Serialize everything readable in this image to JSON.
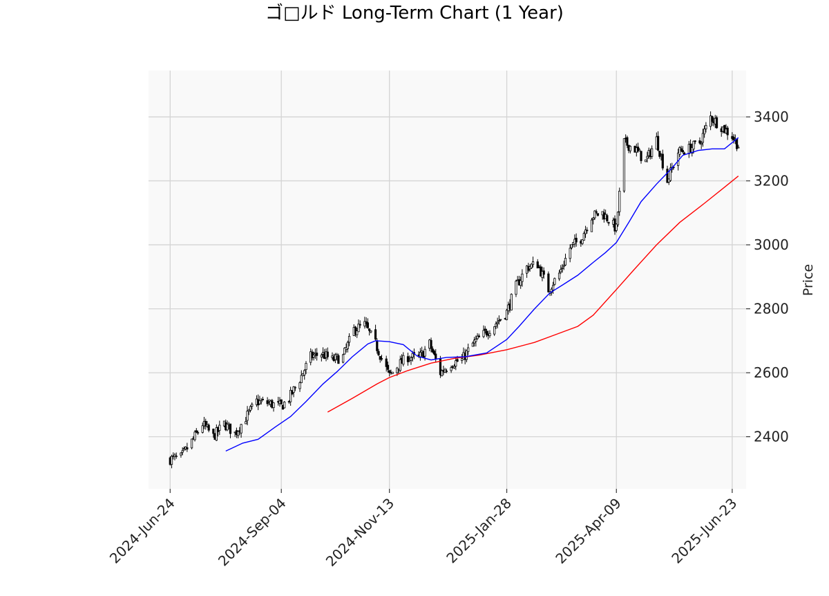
{
  "chart_data": {
    "type": "candlestick",
    "title": "ゴ□ルド Long-Term Chart (1 Year)",
    "ylabel": "Price",
    "ylim": [
      2237,
      3545
    ],
    "y_ticks": [
      2400,
      2600,
      2800,
      3000,
      3200,
      3400
    ],
    "x_range": [
      "2024-06-10",
      "2025-07-02"
    ],
    "x_ticks": [
      "2024-06-24",
      "2024-09-04",
      "2024-11-13",
      "2025-01-28",
      "2025-04-09",
      "2025-06-23"
    ],
    "x_tick_labels": [
      "2024-Jun-24",
      "2024-Sep-04",
      "2024-Nov-13",
      "2025-Jan-28",
      "2025-Apr-09",
      "2025-Jun-23"
    ],
    "grid": true,
    "colors": {
      "candle": "#000000",
      "ma_short": "#0000ff",
      "ma_long": "#ff0000",
      "plot_bg": "#f9f9f9",
      "grid": "#d4d4d4"
    },
    "closes": [
      [
        "2024-06-24",
        2330
      ],
      [
        "2024-07-01",
        2335
      ],
      [
        "2024-07-08",
        2385
      ],
      [
        "2024-07-15",
        2440
      ],
      [
        "2024-07-22",
        2400
      ],
      [
        "2024-07-29",
        2440
      ],
      [
        "2024-08-05",
        2410
      ],
      [
        "2024-08-12",
        2460
      ],
      [
        "2024-08-19",
        2510
      ],
      [
        "2024-08-26",
        2505
      ],
      [
        "2024-09-04",
        2495
      ],
      [
        "2024-09-09",
        2520
      ],
      [
        "2024-09-16",
        2580
      ],
      [
        "2024-09-23",
        2650
      ],
      [
        "2024-09-30",
        2660
      ],
      [
        "2024-10-07",
        2640
      ],
      [
        "2024-10-14",
        2650
      ],
      [
        "2024-10-21",
        2735
      ],
      [
        "2024-10-28",
        2750
      ],
      [
        "2024-11-04",
        2690
      ],
      [
        "2024-11-13",
        2590
      ],
      [
        "2024-11-18",
        2620
      ],
      [
        "2024-11-25",
        2650
      ],
      [
        "2024-12-02",
        2645
      ],
      [
        "2024-12-09",
        2690
      ],
      [
        "2024-12-16",
        2600
      ],
      [
        "2024-12-23",
        2630
      ],
      [
        "2024-12-30",
        2640
      ],
      [
        "2025-01-06",
        2690
      ],
      [
        "2025-01-13",
        2720
      ],
      [
        "2025-01-20",
        2750
      ],
      [
        "2025-01-28",
        2790
      ],
      [
        "2025-02-03",
        2870
      ],
      [
        "2025-02-10",
        2930
      ],
      [
        "2025-02-17",
        2940
      ],
      [
        "2025-02-24",
        2860
      ],
      [
        "2025-03-03",
        2910
      ],
      [
        "2025-03-10",
        2990
      ],
      [
        "2025-03-17",
        3020
      ],
      [
        "2025-03-24",
        3090
      ],
      [
        "2025-03-31",
        3100
      ],
      [
        "2025-04-09",
        3050
      ],
      [
        "2025-04-14",
        3320
      ],
      [
        "2025-04-21",
        3300
      ],
      [
        "2025-04-28",
        3260
      ],
      [
        "2025-05-05",
        3330
      ],
      [
        "2025-05-12",
        3200
      ],
      [
        "2025-05-19",
        3290
      ],
      [
        "2025-05-26",
        3300
      ],
      [
        "2025-06-02",
        3320
      ],
      [
        "2025-06-09",
        3400
      ],
      [
        "2025-06-16",
        3370
      ],
      [
        "2025-06-23",
        3340
      ],
      [
        "2025-06-27",
        3310
      ]
    ],
    "ma_short": [
      [
        "2024-07-30",
        2355
      ],
      [
        "2024-08-10",
        2380
      ],
      [
        "2024-08-20",
        2392
      ],
      [
        "2024-08-31",
        2430
      ],
      [
        "2024-09-10",
        2463
      ],
      [
        "2024-09-20",
        2510
      ],
      [
        "2024-10-01",
        2565
      ],
      [
        "2024-10-10",
        2603
      ],
      [
        "2024-10-20",
        2650
      ],
      [
        "2024-10-30",
        2690
      ],
      [
        "2024-11-04",
        2700
      ],
      [
        "2024-11-13",
        2697
      ],
      [
        "2024-11-22",
        2688
      ],
      [
        "2024-12-01",
        2652
      ],
      [
        "2024-12-10",
        2640
      ],
      [
        "2024-12-20",
        2648
      ],
      [
        "2025-01-01",
        2650
      ],
      [
        "2025-01-15",
        2662
      ],
      [
        "2025-01-28",
        2704
      ],
      [
        "2025-02-05",
        2745
      ],
      [
        "2025-02-15",
        2800
      ],
      [
        "2025-02-25",
        2850
      ],
      [
        "2025-03-05",
        2874
      ],
      [
        "2025-03-15",
        2905
      ],
      [
        "2025-03-25",
        2945
      ],
      [
        "2025-04-02",
        2976
      ],
      [
        "2025-04-09",
        3007
      ],
      [
        "2025-04-17",
        3070
      ],
      [
        "2025-04-25",
        3135
      ],
      [
        "2025-05-05",
        3190
      ],
      [
        "2025-05-15",
        3240
      ],
      [
        "2025-05-22",
        3280
      ],
      [
        "2025-06-01",
        3295
      ],
      [
        "2025-06-10",
        3300
      ],
      [
        "2025-06-18",
        3300
      ],
      [
        "2025-06-27",
        3335
      ]
    ],
    "ma_long": [
      [
        "2024-10-04",
        2477
      ],
      [
        "2024-10-20",
        2520
      ],
      [
        "2024-11-05",
        2565
      ],
      [
        "2024-11-13",
        2585
      ],
      [
        "2024-11-25",
        2607
      ],
      [
        "2024-12-10",
        2630
      ],
      [
        "2024-12-25",
        2645
      ],
      [
        "2025-01-10",
        2655
      ],
      [
        "2025-01-28",
        2672
      ],
      [
        "2025-02-15",
        2695
      ],
      [
        "2025-03-01",
        2720
      ],
      [
        "2025-03-15",
        2745
      ],
      [
        "2025-03-25",
        2780
      ],
      [
        "2025-04-09",
        2860
      ],
      [
        "2025-04-20",
        2920
      ],
      [
        "2025-05-05",
        3000
      ],
      [
        "2025-05-20",
        3070
      ],
      [
        "2025-06-05",
        3130
      ],
      [
        "2025-06-18",
        3180
      ],
      [
        "2025-06-27",
        3215
      ]
    ]
  }
}
